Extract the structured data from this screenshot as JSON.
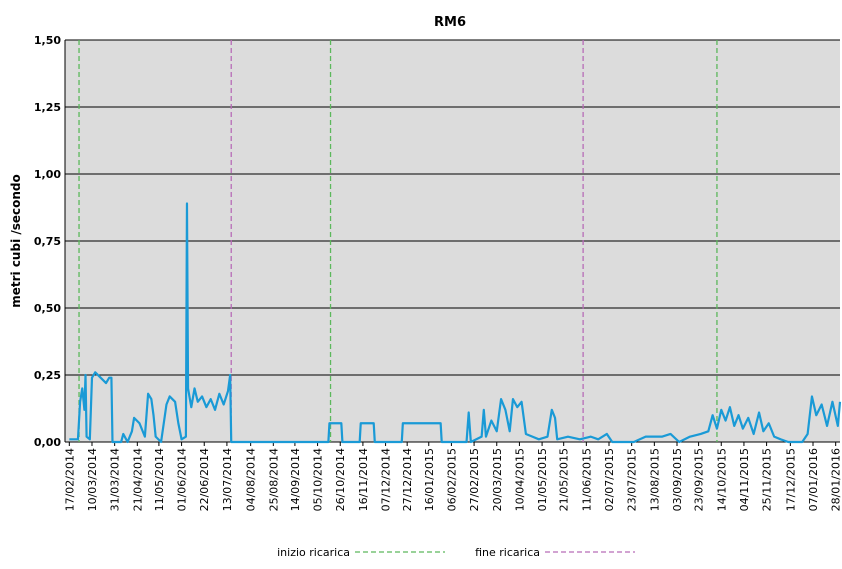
{
  "chart_data": {
    "type": "line",
    "title": "RM6",
    "y_label": "metri cubi /secondo",
    "xlim": [
      "2014-02-13",
      "2016-02-01"
    ],
    "xticks": [
      {
        "value": "2014-02-17",
        "label": "17/02/2014"
      },
      {
        "value": "2014-03-10",
        "label": "10/03/2014"
      },
      {
        "value": "2014-03-31",
        "label": "31/03/2014"
      },
      {
        "value": "2014-04-21",
        "label": "21/04/2014"
      },
      {
        "value": "2014-05-11",
        "label": "11/05/2014"
      },
      {
        "value": "2014-06-01",
        "label": "01/06/2014"
      },
      {
        "value": "2014-06-22",
        "label": "22/06/2014"
      },
      {
        "value": "2014-07-13",
        "label": "13/07/2014"
      },
      {
        "value": "2014-08-04",
        "label": "04/08/2014"
      },
      {
        "value": "2014-08-25",
        "label": "25/08/2014"
      },
      {
        "value": "2014-09-14",
        "label": "14/09/2014"
      },
      {
        "value": "2014-10-05",
        "label": "05/10/2014"
      },
      {
        "value": "2014-10-26",
        "label": "26/10/2014"
      },
      {
        "value": "2014-11-16",
        "label": "16/11/2014"
      },
      {
        "value": "2014-12-07",
        "label": "07/12/2014"
      },
      {
        "value": "2014-12-27",
        "label": "27/12/2014"
      },
      {
        "value": "2015-01-16",
        "label": "16/01/2015"
      },
      {
        "value": "2015-02-06",
        "label": "06/02/2015"
      },
      {
        "value": "2015-02-27",
        "label": "27/02/2015"
      },
      {
        "value": "2015-03-20",
        "label": "20/03/2015"
      },
      {
        "value": "2015-04-10",
        "label": "10/04/2015"
      },
      {
        "value": "2015-05-01",
        "label": "01/05/2015"
      },
      {
        "value": "2015-05-21",
        "label": "21/05/2015"
      },
      {
        "value": "2015-06-11",
        "label": "11/06/2015"
      },
      {
        "value": "2015-07-02",
        "label": "02/07/2015"
      },
      {
        "value": "2015-07-23",
        "label": "23/07/2015"
      },
      {
        "value": "2015-08-13",
        "label": "13/08/2015"
      },
      {
        "value": "2015-09-03",
        "label": "03/09/2015"
      },
      {
        "value": "2015-09-23",
        "label": "23/09/2015"
      },
      {
        "value": "2015-10-14",
        "label": "14/10/2015"
      },
      {
        "value": "2015-11-04",
        "label": "04/11/2015"
      },
      {
        "value": "2015-11-25",
        "label": "25/11/2015"
      },
      {
        "value": "2015-12-17",
        "label": "17/12/2015"
      },
      {
        "value": "2016-01-07",
        "label": "07/01/2016"
      },
      {
        "value": "2016-01-28",
        "label": "28/01/2016"
      }
    ],
    "ylim": [
      0,
      1.5
    ],
    "yticks": [
      {
        "value": 0,
        "label": "0,00"
      },
      {
        "value": 0.25,
        "label": "0,25"
      },
      {
        "value": 0.5,
        "label": "0,50"
      },
      {
        "value": 0.75,
        "label": "0,75"
      },
      {
        "value": 1,
        "label": "1,00"
      },
      {
        "value": 1.25,
        "label": "1,25"
      },
      {
        "value": 1.5,
        "label": "1,50"
      }
    ],
    "grid": true,
    "x": [
      "2014-02-17",
      "2014-02-25",
      "2014-02-27",
      "2014-03-01",
      "2014-03-03",
      "2014-03-04",
      "2014-03-05",
      "2014-03-08",
      "2014-03-10",
      "2014-03-13",
      "2014-03-18",
      "2014-03-23",
      "2014-03-26",
      "2014-03-28",
      "2014-03-29",
      "2014-04-06",
      "2014-04-08",
      "2014-04-12",
      "2014-04-16",
      "2014-04-18",
      "2014-04-23",
      "2014-04-28",
      "2014-05-01",
      "2014-05-04",
      "2014-05-06",
      "2014-05-08",
      "2014-05-13",
      "2014-05-18",
      "2014-05-21",
      "2014-05-26",
      "2014-05-29",
      "2014-06-01",
      "2014-06-05",
      "2014-06-06",
      "2014-06-07",
      "2014-06-10",
      "2014-06-13",
      "2014-06-16",
      "2014-06-20",
      "2014-06-24",
      "2014-06-28",
      "2014-07-02",
      "2014-07-06",
      "2014-07-10",
      "2014-07-14",
      "2014-07-16",
      "2014-07-17",
      "2014-10-15",
      "2014-10-16",
      "2014-10-27",
      "2014-10-28",
      "2014-11-13",
      "2014-11-14",
      "2014-11-26",
      "2014-11-27",
      "2014-12-22",
      "2014-12-23",
      "2015-01-27",
      "2015-01-28",
      "2015-02-20",
      "2015-02-22",
      "2015-02-24",
      "2015-03-06",
      "2015-03-08",
      "2015-03-10",
      "2015-03-15",
      "2015-03-20",
      "2015-03-24",
      "2015-03-28",
      "2015-04-01",
      "2015-04-04",
      "2015-04-08",
      "2015-04-12",
      "2015-04-16",
      "2015-04-22",
      "2015-04-28",
      "2015-05-06",
      "2015-05-10",
      "2015-05-13",
      "2015-05-15",
      "2015-05-25",
      "2015-06-05",
      "2015-06-15",
      "2015-06-22",
      "2015-06-30",
      "2015-07-05",
      "2015-07-25",
      "2015-08-05",
      "2015-08-20",
      "2015-08-28",
      "2015-09-05",
      "2015-09-15",
      "2015-09-25",
      "2015-10-02",
      "2015-10-06",
      "2015-10-10",
      "2015-10-14",
      "2015-10-18",
      "2015-10-22",
      "2015-10-26",
      "2015-10-30",
      "2015-11-03",
      "2015-11-08",
      "2015-11-13",
      "2015-11-18",
      "2015-11-22",
      "2015-11-27",
      "2015-12-02",
      "2015-12-08",
      "2015-12-15",
      "2015-12-28",
      "2016-01-02",
      "2016-01-06",
      "2016-01-10",
      "2016-01-15",
      "2016-01-20",
      "2016-01-25",
      "2016-01-30",
      "2016-02-01"
    ],
    "series": [
      {
        "color": "#1a9ad6",
        "values": [
          0.01,
          0.01,
          0.15,
          0.2,
          0.12,
          0.25,
          0.02,
          0.01,
          0.24,
          0.26,
          0.24,
          0.22,
          0.24,
          0.24,
          0,
          0,
          0.03,
          0,
          0.04,
          0.09,
          0.07,
          0.02,
          0.18,
          0.16,
          0.1,
          0.02,
          0,
          0.14,
          0.17,
          0.15,
          0.07,
          0.01,
          0.02,
          0.89,
          0.2,
          0.13,
          0.2,
          0.15,
          0.17,
          0.13,
          0.16,
          0.12,
          0.18,
          0.14,
          0.19,
          0.25,
          0,
          0,
          0.07,
          0.07,
          0,
          0,
          0.07,
          0.07,
          0,
          0,
          0.07,
          0.07,
          0,
          0,
          0.11,
          0,
          0.02,
          0.12,
          0.02,
          0.08,
          0.04,
          0.16,
          0.12,
          0.04,
          0.16,
          0.13,
          0.15,
          0.03,
          0.02,
          0.01,
          0.02,
          0.12,
          0.09,
          0.01,
          0.02,
          0.01,
          0.02,
          0.01,
          0.03,
          0,
          0,
          0.02,
          0.02,
          0.03,
          0,
          0.02,
          0.03,
          0.04,
          0.1,
          0.05,
          0.12,
          0.08,
          0.13,
          0.06,
          0.1,
          0.05,
          0.09,
          0.03,
          0.11,
          0.04,
          0.07,
          0.02,
          0.01,
          0,
          0,
          0.03,
          0.17,
          0.1,
          0.14,
          0.06,
          0.15,
          0.06,
          0.15
        ]
      }
    ],
    "reference_lines": [
      {
        "name": "inizio ricarica",
        "color": "#5cb85c",
        "x": [
          "2014-02-26",
          "2014-10-17",
          "2015-10-10"
        ]
      },
      {
        "name": "fine ricarica",
        "color": "#b86cb8",
        "x": [
          "2014-07-17",
          "2015-06-08"
        ]
      }
    ]
  }
}
